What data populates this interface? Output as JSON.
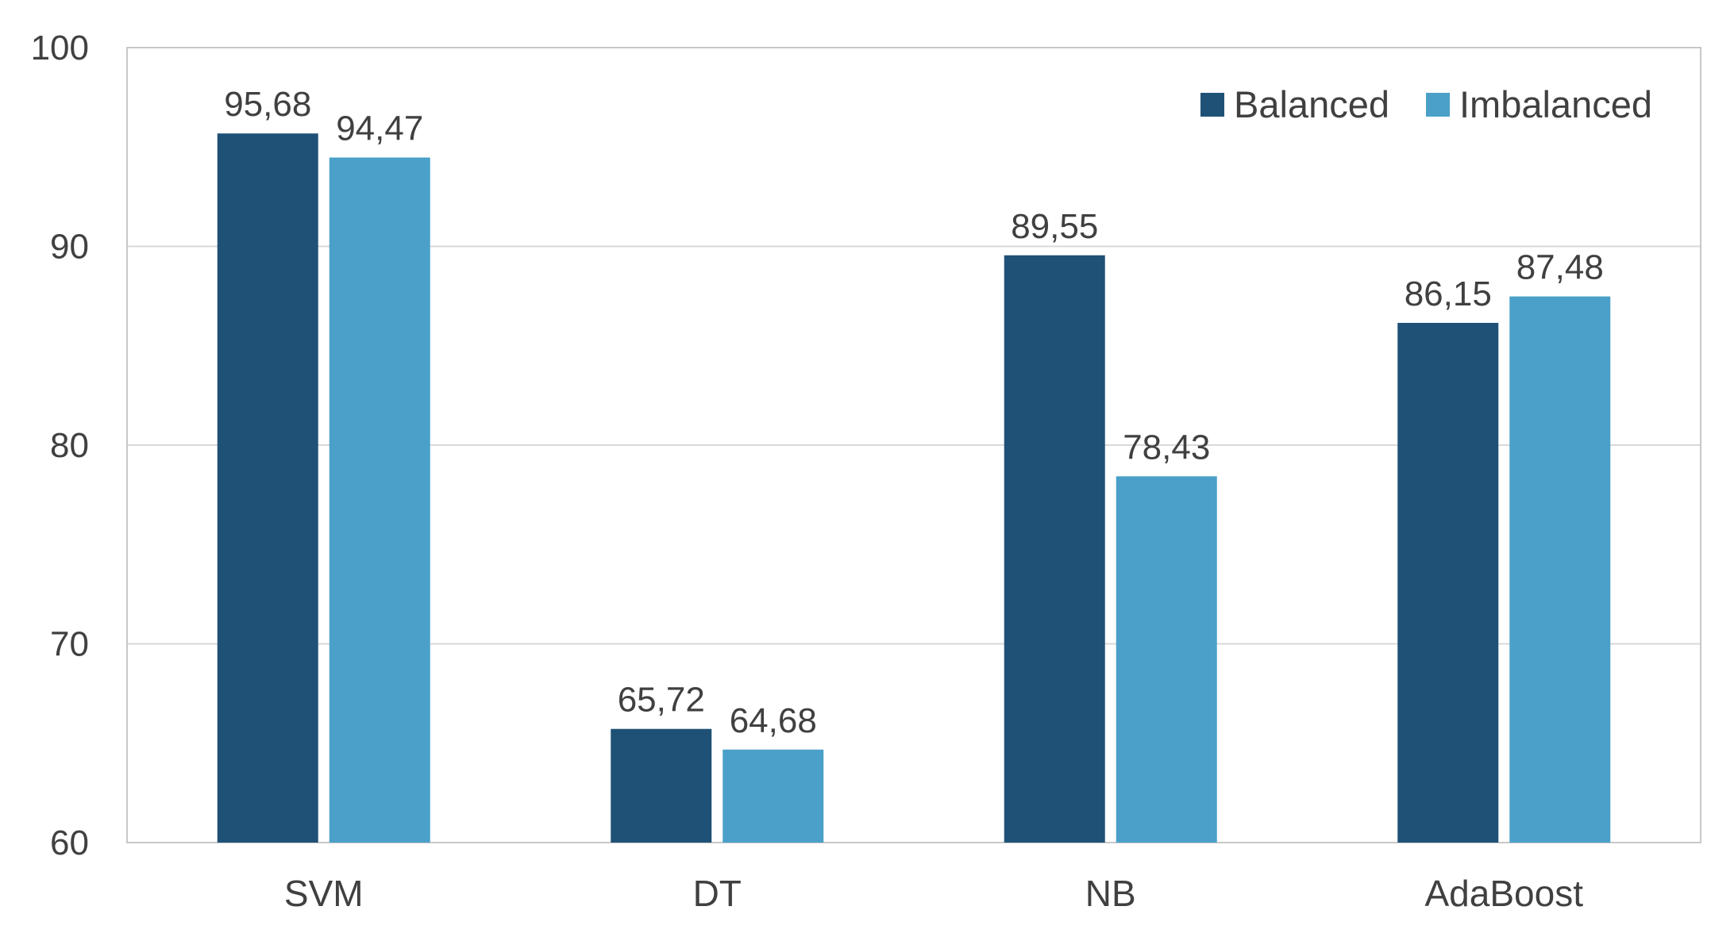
{
  "chart_data": {
    "type": "bar",
    "title": "",
    "xlabel": "",
    "ylabel": "",
    "ylim": [
      60,
      100
    ],
    "yticks": [
      60,
      70,
      80,
      90,
      100
    ],
    "ytick_labels": [
      "60",
      "70",
      "80",
      "90",
      "100"
    ],
    "grid": true,
    "legend_position": "top-right",
    "categories": [
      "SVM",
      "DT",
      "NB",
      "AdaBoost"
    ],
    "series": [
      {
        "name": "Balanced",
        "color": "#1F5177",
        "values": [
          95.68,
          65.72,
          89.55,
          86.15
        ],
        "labels": [
          "95,68",
          "65,72",
          "89,55",
          "86,15"
        ]
      },
      {
        "name": "Imbalanced",
        "color": "#4AA0C8",
        "values": [
          94.47,
          64.68,
          78.43,
          87.48
        ],
        "labels": [
          "94,47",
          "64,68",
          "78,43",
          "87,48"
        ]
      }
    ]
  }
}
